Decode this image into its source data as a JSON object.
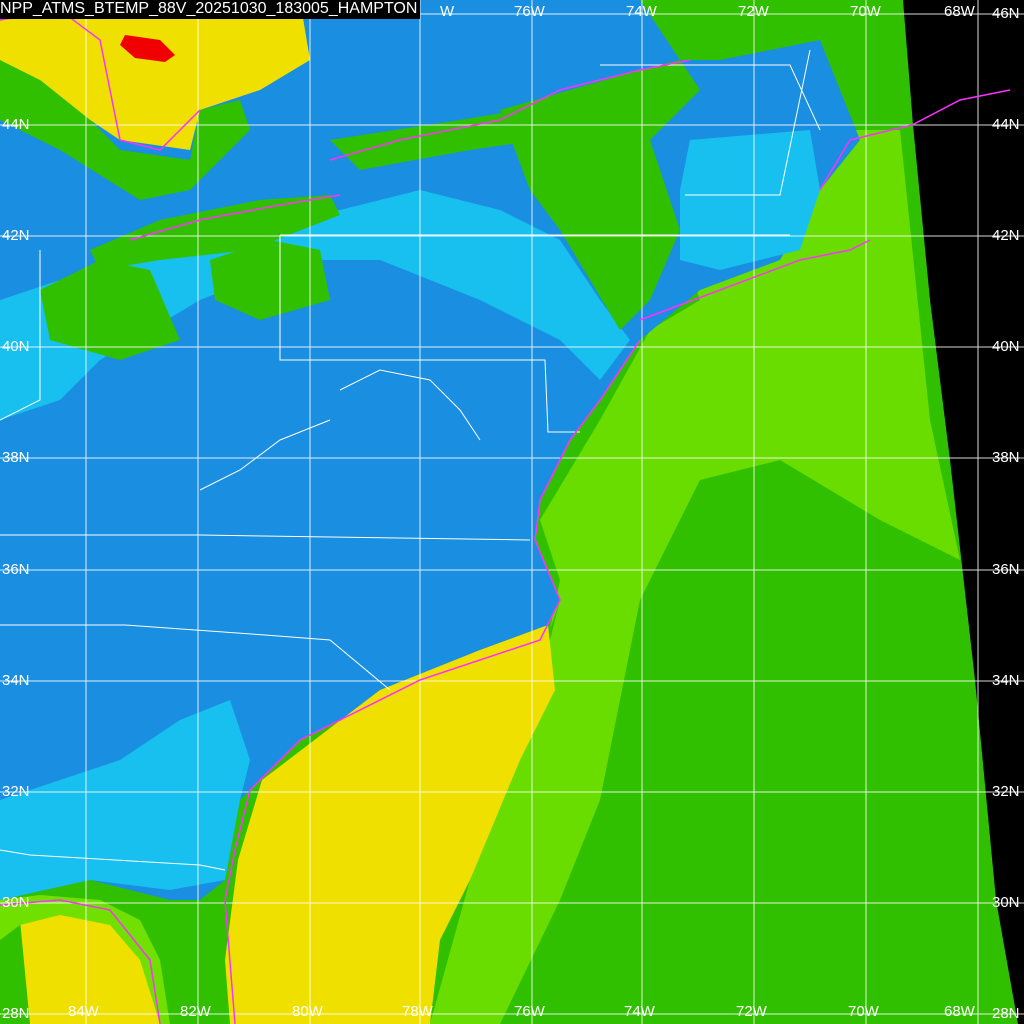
{
  "title": "NPP_ATMS_BTEMP_88V_20251030_183005_HAMPTON",
  "lon_labels_top": [
    "W",
    "76W",
    "74W",
    "72W",
    "70W",
    "68W"
  ],
  "lon_labels_bottom": [
    "84W",
    "82W",
    "80W",
    "78W",
    "76W",
    "74W",
    "72W",
    "70W",
    "68W"
  ],
  "lat_labels_right": [
    "46N",
    "44N",
    "42N",
    "40N",
    "38N",
    "36N",
    "34N",
    "32N",
    "30N",
    "28N"
  ],
  "lat_labels_left": [
    "44N",
    "42N",
    "40N",
    "38N",
    "36N",
    "34N",
    "32N",
    "30N",
    "28N"
  ],
  "colors": {
    "land_cold": "#1a8ee0",
    "land_light": "#18c0f0",
    "green": "#30c000",
    "light_green": "#70e000",
    "yellow": "#f0e000",
    "red": "#f00000",
    "no_data": "#000000",
    "coastline": "#ff30ff",
    "borders_grid": "#ffffff"
  }
}
